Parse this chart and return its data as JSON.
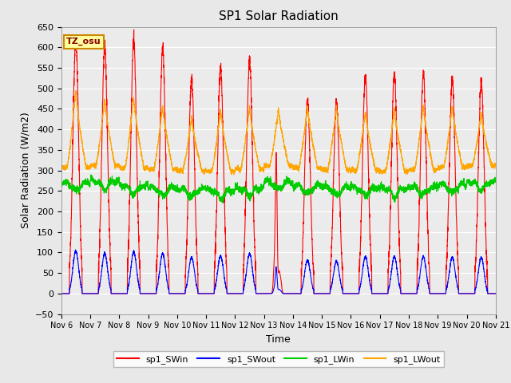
{
  "title": "SP1 Solar Radiation",
  "ylabel": "Solar Radiation (W/m2)",
  "xlabel": "Time",
  "ylim": [
    -50,
    650
  ],
  "yticks": [
    -50,
    0,
    50,
    100,
    150,
    200,
    250,
    300,
    350,
    400,
    450,
    500,
    550,
    600,
    650
  ],
  "tz_label": "TZ_osu",
  "colors": {
    "SWin": "#FF0000",
    "SWout": "#0000FF",
    "LWin": "#00CC00",
    "LWout": "#FFA500"
  },
  "background_color": "#E8E8E8",
  "plot_bg_color": "#EBEBEB",
  "x_tick_labels": [
    "Nov 6",
    "Nov 7",
    "Nov 8",
    "Nov 9",
    "Nov 10",
    "Nov 11",
    "Nov 12",
    "Nov 13",
    "Nov 14",
    "Nov 15",
    "Nov 16",
    "Nov 17",
    "Nov 18",
    "Nov 19",
    "Nov 20",
    "Nov 21"
  ],
  "num_days": 15,
  "pts_per_day": 288,
  "sw_peaks": [
    620,
    600,
    615,
    595,
    525,
    550,
    570,
    340,
    470,
    465,
    530,
    535,
    535,
    520,
    515
  ],
  "sw_out_peaks": [
    115,
    108,
    112,
    108,
    98,
    102,
    108,
    65,
    90,
    87,
    100,
    100,
    100,
    97,
    97
  ],
  "lw_out_peaks": [
    495,
    475,
    480,
    460,
    430,
    450,
    455,
    450,
    455,
    455,
    445,
    450,
    460,
    455,
    440
  ],
  "lw_in_night": [
    270,
    275,
    263,
    258,
    255,
    252,
    258,
    273,
    263,
    260,
    258,
    257,
    260,
    266,
    272
  ],
  "lw_out_night": [
    308,
    312,
    306,
    303,
    300,
    298,
    303,
    311,
    306,
    302,
    300,
    298,
    302,
    308,
    312
  ]
}
